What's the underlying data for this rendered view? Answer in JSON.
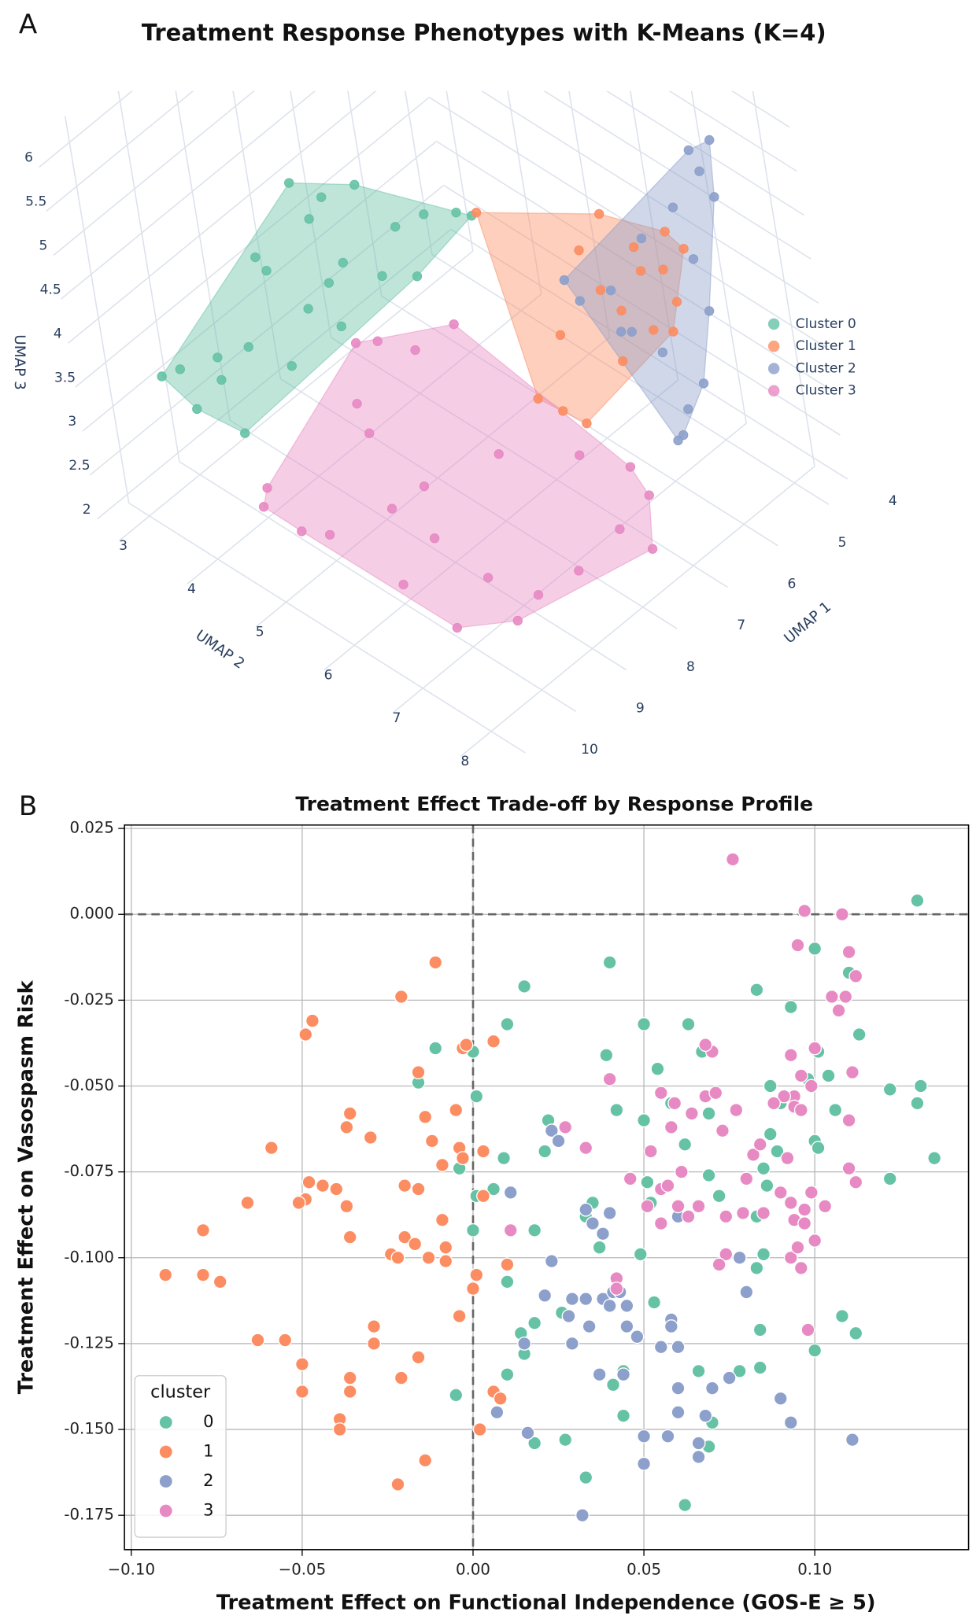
{
  "chart_data": [
    {
      "type": "scatter3d",
      "panel_label": "A",
      "title": "Treatment Response Phenotypes with K-Means (K=4)",
      "x_label": "UMAP 1",
      "y_label": "UMAP 2",
      "z_label": "UMAP 3",
      "xlim": [
        3.6,
        10.6
      ],
      "ylim": [
        2.7,
        8.5
      ],
      "zlim": [
        1.9,
        6.3
      ],
      "xticks": [
        4,
        5,
        6,
        7,
        8,
        9,
        10
      ],
      "yticks": [
        3,
        4,
        5,
        6,
        7,
        8
      ],
      "zticks": [
        2,
        2.5,
        3,
        3.5,
        4,
        4.5,
        5,
        5.5,
        6
      ],
      "hulls": true,
      "series": [
        {
          "name": "Cluster 0",
          "color": "#66c2a5",
          "x": [
            10.14,
            10.1,
            10.39,
            10.2,
            9.89,
            9.1,
            8.12,
            7.71,
            6.62,
            6.43,
            6.19,
            6.09,
            5.89,
            5.48,
            6.47,
            7.09,
            8.02,
            8.28,
            8.88,
            9.51,
            6.94,
            7.03,
            5.39,
            7.75
          ],
          "y": [
            3.71,
            3.99,
            4.43,
            4.97,
            4.44,
            4.23,
            3.81,
            3.28,
            3.01,
            3.32,
            3.67,
            4.13,
            4.44,
            4.59,
            4.71,
            4.72,
            4.79,
            4.54,
            4.68,
            4.08,
            3.54,
            4.06,
            4.75,
            4.45
          ],
          "z": [
            3.9,
            4.1,
            4.0,
            3.9,
            4.1,
            4.0,
            4.2,
            3.9,
            4.1,
            4.0,
            4.2,
            3.9,
            4.1,
            4.0,
            3.8,
            4.1,
            4.0,
            4.2,
            3.9,
            4.0,
            4.1,
            3.9,
            4.0,
            4.2
          ]
        },
        {
          "name": "Cluster 1",
          "color": "#fc8d62",
          "x": [
            5.63,
            4.7,
            4.16,
            4.34,
            6.47,
            7.64,
            7.7,
            7.45,
            5.72,
            5.12,
            5.6,
            5.56,
            5.62,
            5.37,
            4.64,
            4.8,
            5.23,
            6.29
          ],
          "y": [
            5.06,
            6.19,
            6.71,
            7.14,
            6.89,
            7.45,
            7.88,
            8.0,
            7.25,
            7.11,
            7.61,
            7.89,
            6.87,
            6.39,
            6.61,
            7.18,
            7.72,
            7.67
          ],
          "z": [
            4.3,
            4.4,
            4.2,
            4.3,
            4.2,
            4.3,
            4.4,
            4.2,
            4.3,
            4.4,
            4.2,
            4.3,
            4.3,
            4.4,
            4.2,
            4.3,
            4.4,
            4.2
          ]
        },
        {
          "name": "Cluster 2",
          "color": "#8da0cb",
          "x": [
            4.89,
            4.68,
            4.77,
            6.01,
            6.01,
            5.36,
            5.81,
            5.82,
            4.97,
            5.1,
            4.73,
            5.75,
            5.15,
            5.72,
            6.16,
            4.87,
            5.92,
            5.63
          ],
          "y": [
            8.0,
            8.17,
            8.18,
            6.67,
            7.46,
            8.06,
            8.01,
            7.92,
            7.98,
            7.19,
            7.44,
            7.16,
            8.03,
            7.81,
            7.01,
            8.1,
            7.55,
            7.99
          ],
          "z": [
            6.1,
            6.2,
            5.6,
            4.5,
            4.3,
            3.7,
            3.3,
            3.2,
            4.3,
            4.8,
            5.1,
            4.5,
            5.0,
            4.1,
            4.5,
            5.9,
            4.3,
            3.5
          ]
        },
        {
          "name": "Cluster 3",
          "color": "#e78ac3",
          "x": [
            9.86,
            9.68,
            9.76,
            6.94,
            6.62,
            6.31,
            5.84,
            7.65,
            7.84,
            9.78,
            9.72,
            9.74,
            9.23,
            8.13,
            7.09,
            6.28,
            6.27,
            6.44,
            7.01,
            8.2,
            8.89,
            8.79,
            8.7,
            7.21,
            8.82
          ],
          "y": [
            4.76,
            4.7,
            5.22,
            3.97,
            4.03,
            4.33,
            4.59,
            4.49,
            4.79,
            5.69,
            6.7,
            7.48,
            8.01,
            8.11,
            8.4,
            7.73,
            7.49,
            6.85,
            6.07,
            5.88,
            5.94,
            7.23,
            7.92,
            8.03,
            6.49
          ],
          "z": [
            2.8,
            2.9,
            2.7,
            2.9,
            2.8,
            2.7,
            2.9,
            2.8,
            2.7,
            2.9,
            2.8,
            2.7,
            2.8,
            2.9,
            2.8,
            2.7,
            2.9,
            2.8,
            2.7,
            2.8,
            2.9,
            2.7,
            2.8,
            2.9,
            2.8
          ]
        }
      ]
    },
    {
      "type": "scatter",
      "panel_label": "B",
      "title": "Treatment Effect Trade-off by Response Profile",
      "x_label": "Treatment Effect on Functional Independence (GOS-E ≥ 5)",
      "y_label": "Treatment Effect on Vasospasm Risk",
      "xlim": [
        -0.102,
        0.145
      ],
      "ylim": [
        -0.185,
        0.026
      ],
      "xticks": [
        {
          "value": -0.1,
          "label": "−0.10"
        },
        {
          "value": -0.05,
          "label": "−0.05"
        },
        {
          "value": 0,
          "label": "0.00"
        },
        {
          "value": 0.05,
          "label": "0.05"
        },
        {
          "value": 0.1,
          "label": "0.10"
        }
      ],
      "yticks": [
        0.025,
        {
          "value": 0,
          "label": "0.000"
        },
        -0.025,
        {
          "value": -0.05,
          "label": "-0.050"
        },
        -0.075,
        {
          "value": -0.1,
          "label": "-0.100"
        },
        -0.125,
        {
          "value": -0.15,
          "label": "-0.150"
        },
        -0.175
      ],
      "grid": true,
      "hlines": [
        0
      ],
      "vlines": [
        0
      ],
      "legend_title": "cluster",
      "legend": "lower left",
      "series": [
        {
          "name": "0",
          "color": "#66c2a5",
          "x": [
            0.13,
            0.04,
            0.015,
            0.01,
            -0.011,
            -0.016,
            0,
            0.001,
            0.009,
            0.006,
            -0.004,
            0.001,
            0,
            0.018,
            0.01,
            0.014,
            0.015,
            0.018,
            0.022,
            0.021,
            0.039,
            0.042,
            0.05,
            0.054,
            0.063,
            0.067,
            0.069,
            0.062,
            0.058,
            0.05,
            0.046,
            0.052,
            0.051,
            0.049,
            0.053,
            0.044,
            0.041,
            0.044,
            0.033,
            0.027,
            0.018,
            0.01,
            -0.005,
            0.062,
            0.07,
            0.069,
            0.066,
            0.078,
            0.084,
            0.084,
            0.083,
            0.093,
            0.09,
            0.087,
            0.087,
            0.089,
            0.085,
            0.086,
            0.083,
            0.085,
            0.083,
            0.072,
            0.069,
            0.1,
            0.101,
            0.104,
            0.106,
            0.098,
            0.1,
            0.101,
            0.11,
            0.113,
            0.11,
            0.122,
            0.131,
            0.13,
            0.135,
            0.122,
            0.1,
            0.108,
            0.112,
            0.035,
            0.037,
            0.026,
            0.033
          ],
          "values": [
            0.004,
            -0.014,
            -0.021,
            -0.032,
            -0.039,
            -0.049,
            -0.04,
            -0.053,
            -0.071,
            -0.08,
            -0.074,
            -0.082,
            -0.092,
            -0.092,
            -0.107,
            -0.122,
            -0.128,
            -0.119,
            -0.06,
            -0.069,
            -0.041,
            -0.057,
            -0.032,
            -0.045,
            -0.032,
            -0.04,
            -0.058,
            -0.067,
            -0.055,
            -0.06,
            -0.077,
            -0.084,
            -0.078,
            -0.099,
            -0.113,
            -0.133,
            -0.137,
            -0.146,
            -0.164,
            -0.153,
            -0.154,
            -0.134,
            -0.14,
            -0.172,
            -0.148,
            -0.155,
            -0.133,
            -0.133,
            -0.132,
            -0.121,
            -0.022,
            -0.027,
            -0.055,
            -0.05,
            -0.064,
            -0.069,
            -0.074,
            -0.079,
            -0.088,
            -0.099,
            -0.103,
            -0.082,
            -0.076,
            -0.01,
            -0.04,
            -0.047,
            -0.057,
            -0.048,
            -0.066,
            -0.068,
            -0.017,
            -0.035,
            -0.06,
            -0.051,
            -0.05,
            -0.055,
            -0.071,
            -0.077,
            -0.127,
            -0.117,
            -0.122,
            -0.084,
            -0.097,
            -0.116,
            -0.088
          ]
        },
        {
          "name": "1",
          "color": "#fc8d62",
          "x": [
            -0.09,
            -0.079,
            -0.079,
            -0.074,
            -0.066,
            -0.059,
            -0.063,
            -0.055,
            -0.049,
            -0.047,
            -0.048,
            -0.049,
            -0.051,
            -0.044,
            -0.04,
            -0.037,
            -0.036,
            -0.036,
            -0.037,
            -0.03,
            -0.05,
            -0.05,
            -0.039,
            -0.039,
            -0.036,
            -0.036,
            -0.029,
            -0.029,
            -0.024,
            -0.022,
            -0.02,
            -0.021,
            -0.02,
            -0.016,
            -0.017,
            -0.016,
            -0.014,
            -0.013,
            -0.012,
            -0.011,
            -0.009,
            -0.008,
            -0.008,
            -0.009,
            -0.005,
            -0.004,
            -0.003,
            -0.003,
            -0.004,
            -0.002,
            0.003,
            0.003,
            0.001,
            0,
            0.006,
            0.002,
            0.006,
            0.008,
            0.01,
            -0.016,
            -0.021,
            -0.014,
            -0.022
          ],
          "values": [
            -0.105,
            -0.092,
            -0.105,
            -0.107,
            -0.084,
            -0.068,
            -0.124,
            -0.124,
            -0.035,
            -0.031,
            -0.078,
            -0.083,
            -0.084,
            -0.079,
            -0.08,
            -0.085,
            -0.094,
            -0.058,
            -0.062,
            -0.065,
            -0.131,
            -0.139,
            -0.147,
            -0.15,
            -0.135,
            -0.139,
            -0.12,
            -0.125,
            -0.099,
            -0.1,
            -0.094,
            -0.024,
            -0.079,
            -0.08,
            -0.096,
            -0.046,
            -0.059,
            -0.1,
            -0.066,
            -0.014,
            -0.089,
            -0.097,
            -0.101,
            -0.073,
            -0.057,
            -0.068,
            -0.039,
            -0.071,
            -0.117,
            -0.038,
            -0.069,
            -0.082,
            -0.105,
            -0.109,
            -0.037,
            -0.15,
            -0.139,
            -0.141,
            -0.102,
            -0.129,
            -0.135,
            -0.159,
            -0.166
          ]
        },
        {
          "name": "2",
          "color": "#8da0cb",
          "x": [
            0.011,
            0.023,
            0.025,
            0.023,
            0.021,
            0.015,
            0.007,
            0.016,
            0.028,
            0.029,
            0.029,
            0.033,
            0.034,
            0.038,
            0.037,
            0.04,
            0.041,
            0.043,
            0.045,
            0.045,
            0.048,
            0.044,
            0.032,
            0.038,
            0.035,
            0.04,
            0.05,
            0.055,
            0.058,
            0.058,
            0.06,
            0.06,
            0.06,
            0.057,
            0.066,
            0.07,
            0.068,
            0.075,
            0.078,
            0.08,
            0.09,
            0.093,
            0.111,
            0.06,
            0.05,
            0.033,
            0.066
          ],
          "values": [
            -0.081,
            -0.063,
            -0.066,
            -0.101,
            -0.111,
            -0.125,
            -0.145,
            -0.151,
            -0.117,
            -0.112,
            -0.125,
            -0.112,
            -0.12,
            -0.112,
            -0.134,
            -0.114,
            -0.11,
            -0.11,
            -0.114,
            -0.12,
            -0.123,
            -0.134,
            -0.175,
            -0.093,
            -0.09,
            -0.087,
            -0.152,
            -0.126,
            -0.118,
            -0.12,
            -0.126,
            -0.138,
            -0.145,
            -0.152,
            -0.154,
            -0.138,
            -0.146,
            -0.135,
            -0.1,
            -0.11,
            -0.141,
            -0.148,
            -0.153,
            -0.088,
            -0.16,
            -0.086,
            -0.158
          ]
        },
        {
          "name": "3",
          "color": "#e78ac3",
          "x": [
            0.076,
            0.097,
            0.108,
            0.095,
            0.11,
            0.112,
            0.109,
            0.105,
            0.107,
            0.04,
            0.07,
            0.068,
            0.093,
            0.096,
            0.099,
            0.094,
            0.091,
            0.094,
            0.096,
            0.1,
            0.111,
            0.11,
            0.112,
            0.11,
            0.103,
            0.099,
            0.097,
            0.093,
            0.094,
            0.097,
            0.093,
            0.095,
            0.1,
            0.096,
            0.09,
            0.085,
            0.079,
            0.074,
            0.074,
            0.072,
            0.066,
            0.063,
            0.061,
            0.058,
            0.055,
            0.059,
            0.064,
            0.068,
            0.071,
            0.073,
            0.077,
            0.082,
            0.088,
            0.092,
            0.084,
            0.08,
            0.055,
            0.052,
            0.057,
            0.06,
            0.055,
            0.046,
            0.042,
            0.042,
            0.027,
            0.033,
            0.011,
            0.098,
            0.051
          ],
          "values": [
            0.016,
            0.001,
            0,
            -0.009,
            -0.011,
            -0.018,
            -0.024,
            -0.024,
            -0.028,
            -0.048,
            -0.04,
            -0.038,
            -0.041,
            -0.047,
            -0.05,
            -0.053,
            -0.053,
            -0.056,
            -0.057,
            -0.039,
            -0.046,
            -0.06,
            -0.078,
            -0.074,
            -0.085,
            -0.081,
            -0.086,
            -0.084,
            -0.089,
            -0.09,
            -0.1,
            -0.097,
            -0.095,
            -0.103,
            -0.081,
            -0.087,
            -0.087,
            -0.088,
            -0.099,
            -0.102,
            -0.085,
            -0.088,
            -0.075,
            -0.062,
            -0.052,
            -0.055,
            -0.058,
            -0.053,
            -0.052,
            -0.063,
            -0.057,
            -0.07,
            -0.055,
            -0.071,
            -0.067,
            -0.077,
            -0.08,
            -0.069,
            -0.079,
            -0.085,
            -0.09,
            -0.077,
            -0.106,
            -0.109,
            -0.062,
            -0.068,
            -0.092,
            -0.121,
            -0.085
          ]
        }
      ]
    }
  ]
}
